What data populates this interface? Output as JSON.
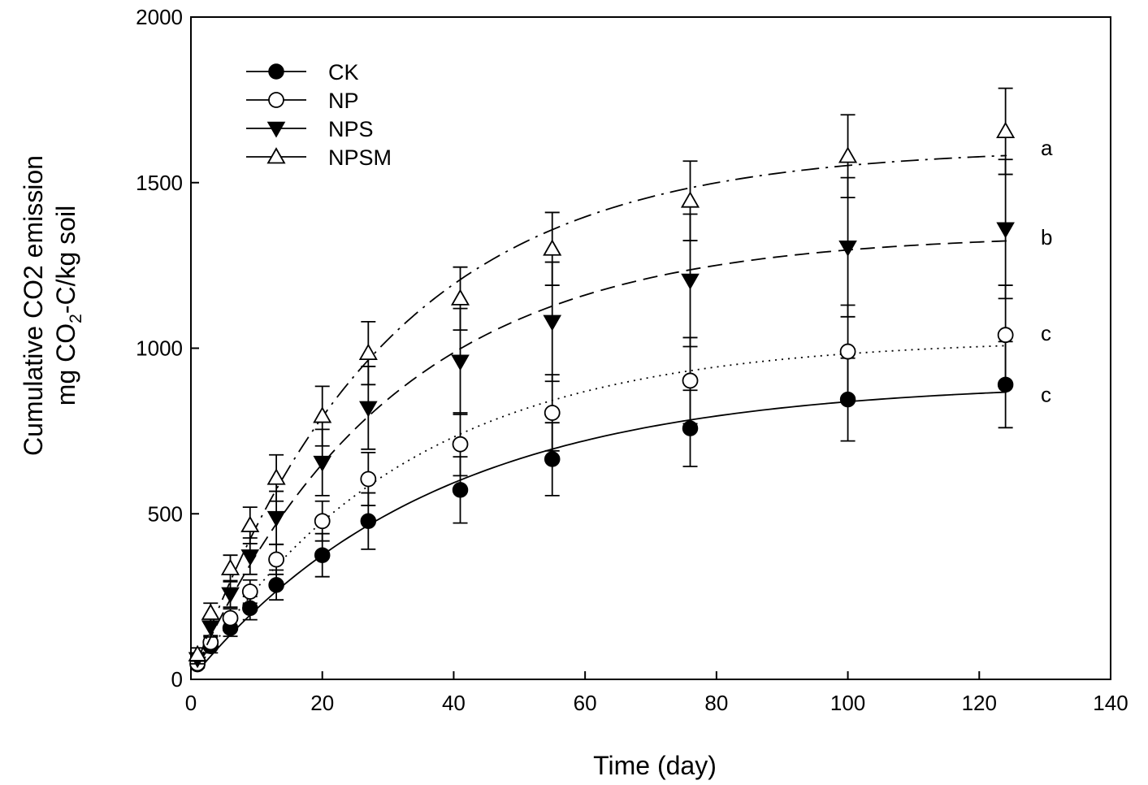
{
  "chart_data": {
    "type": "line",
    "title": "",
    "xlabel": "Time (day)",
    "ylabel": {
      "line1": "Cumulative CO2 emission",
      "line2_prefix": "mg CO",
      "line2_sub": "2",
      "line2_suffix": "-C/kg soil"
    },
    "xlim": [
      0,
      140
    ],
    "ylim": [
      0,
      2000
    ],
    "xticks": [
      0,
      20,
      40,
      60,
      80,
      100,
      120,
      140
    ],
    "yticks": [
      0,
      500,
      1000,
      1500,
      2000
    ],
    "grid": false,
    "legend_position": "top-left",
    "x": [
      1,
      3,
      6,
      9,
      13,
      20,
      27,
      41,
      55,
      76,
      100,
      124
    ],
    "series": [
      {
        "name": "CK",
        "marker": "filled-circle",
        "line_style": "solid",
        "values": [
          45,
          100,
          155,
          215,
          285,
          375,
          478,
          572,
          665,
          758,
          845,
          890
        ],
        "errors": [
          10,
          20,
          25,
          35,
          45,
          65,
          85,
          100,
          110,
          115,
          125,
          130
        ],
        "letter": "c",
        "letter_y": 860
      },
      {
        "name": "NP",
        "marker": "open-circle",
        "line_style": "dotted",
        "values": [
          48,
          112,
          185,
          265,
          362,
          478,
          605,
          710,
          805,
          902,
          990,
          1040
        ],
        "errors": [
          12,
          20,
          28,
          35,
          45,
          60,
          80,
          95,
          115,
          130,
          140,
          150
        ],
        "letter": "c",
        "letter_y": 1045
      },
      {
        "name": "NPS",
        "marker": "filled-triangle-down",
        "line_style": "dashed",
        "values": [
          62,
          158,
          258,
          372,
          488,
          655,
          820,
          960,
          1080,
          1205,
          1305,
          1360
        ],
        "errors": [
          15,
          30,
          40,
          55,
          80,
          100,
          125,
          160,
          180,
          200,
          210,
          210
        ],
        "letter": "b",
        "letter_y": 1335
      },
      {
        "name": "NPSM",
        "marker": "open-triangle-up",
        "line_style": "dash-dot",
        "values": [
          75,
          200,
          335,
          465,
          608,
          795,
          985,
          1150,
          1300,
          1445,
          1580,
          1655
        ],
        "errors": [
          20,
          30,
          40,
          55,
          70,
          90,
          95,
          95,
          110,
          120,
          125,
          130
        ],
        "letter": "a",
        "letter_y": 1605
      }
    ]
  }
}
